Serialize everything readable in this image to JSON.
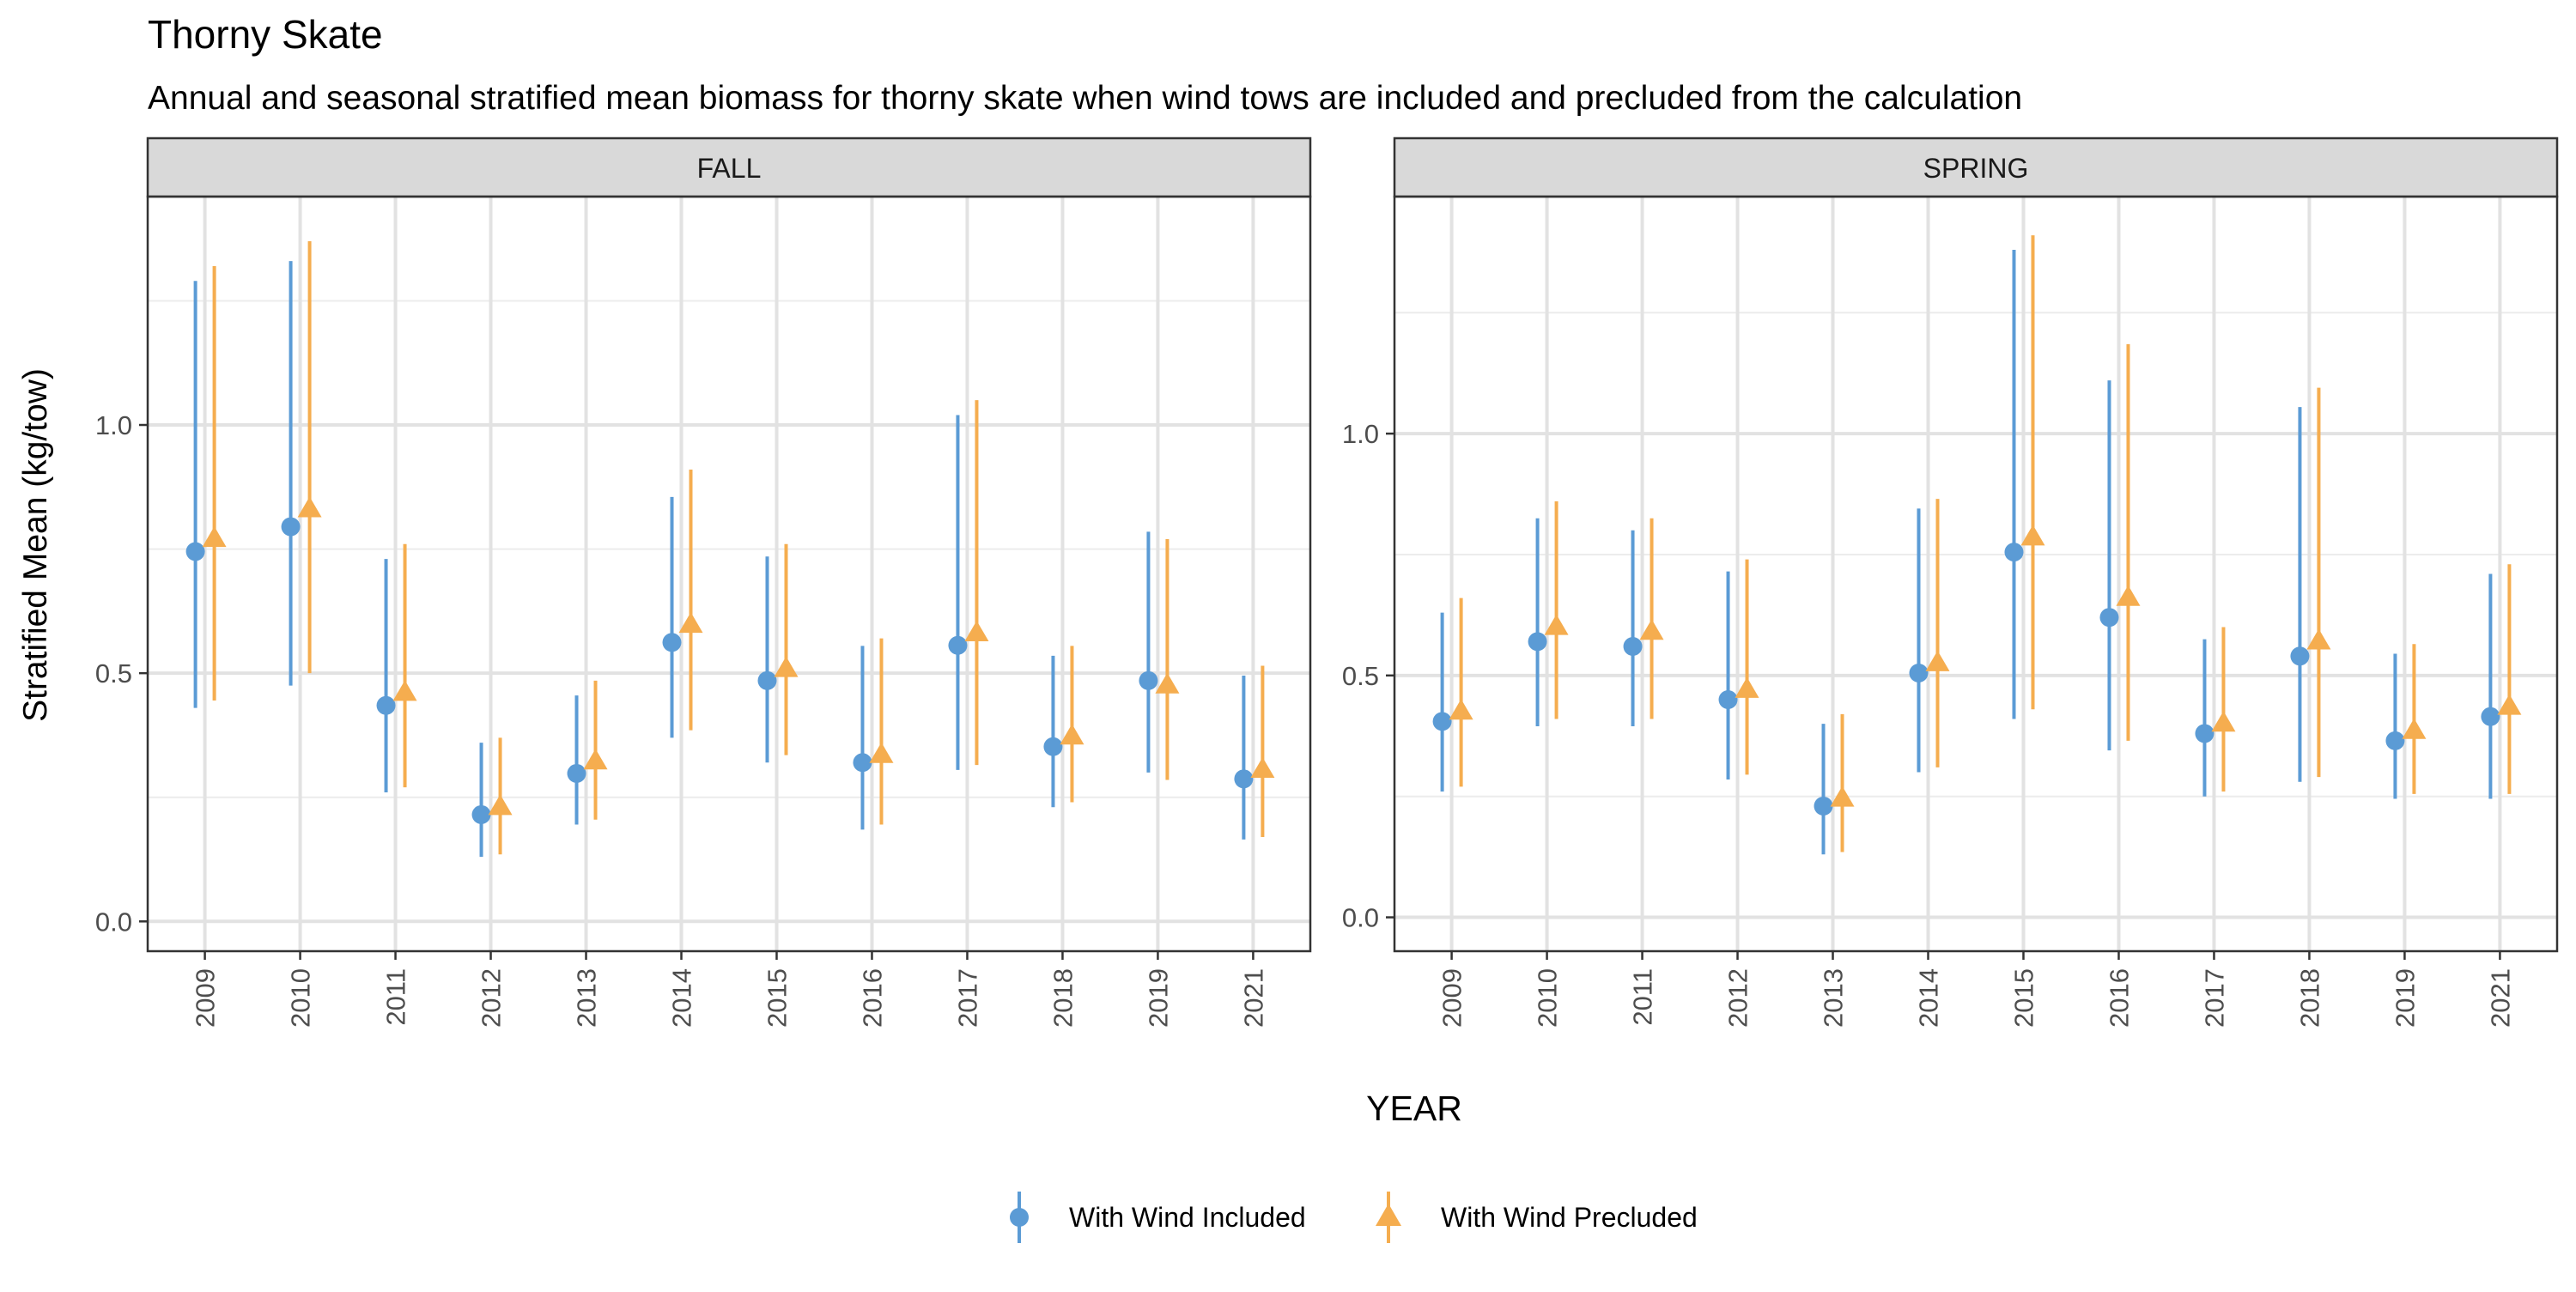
{
  "chart_data": {
    "type": "scatter",
    "title": "Thorny Skate",
    "subtitle": "Annual and seasonal stratified mean biomass for thorny skate when wind tows are included and precluded from the calculation",
    "xlabel": "YEAR",
    "ylabel": "Stratified Mean (kg/tow)",
    "grid": true,
    "legend_position": "bottom",
    "categories": [
      "2009",
      "2010",
      "2011",
      "2012",
      "2013",
      "2014",
      "2015",
      "2016",
      "2017",
      "2018",
      "2019",
      "2021"
    ],
    "series_info": [
      {
        "name": "With Wind Included",
        "color": "#5b9bd5",
        "marker": "circle"
      },
      {
        "name": "With Wind Precluded",
        "color": "#f5ad4f",
        "marker": "triangle"
      }
    ],
    "panels": [
      {
        "label": "FALL",
        "ylim": [
          -0.06,
          1.46
        ],
        "yticks": [
          0.0,
          0.5,
          1.0
        ],
        "ytick_labels": [
          "0.0",
          "0.5",
          "1.0"
        ],
        "series": [
          {
            "name": "With Wind Included",
            "values": [
              0.745,
              0.795,
              0.435,
              0.215,
              0.298,
              0.562,
              0.485,
              0.32,
              0.556,
              0.352,
              0.485,
              0.287
            ],
            "lower": [
              0.43,
              0.475,
              0.26,
              0.13,
              0.195,
              0.37,
              0.32,
              0.185,
              0.305,
              0.23,
              0.3,
              0.165
            ],
            "upper": [
              1.29,
              1.33,
              0.73,
              0.36,
              0.455,
              0.855,
              0.735,
              0.555,
              1.02,
              0.535,
              0.785,
              0.495
            ]
          },
          {
            "name": "With Wind Precluded",
            "values": [
              0.77,
              0.83,
              0.46,
              0.23,
              0.322,
              0.597,
              0.508,
              0.335,
              0.58,
              0.372,
              0.475,
              0.305
            ],
            "lower": [
              0.445,
              0.5,
              0.27,
              0.135,
              0.205,
              0.385,
              0.335,
              0.195,
              0.315,
              0.24,
              0.285,
              0.17
            ],
            "upper": [
              1.32,
              1.37,
              0.76,
              0.37,
              0.485,
              0.91,
              0.76,
              0.57,
              1.05,
              0.555,
              0.77,
              0.515
            ]
          }
        ]
      },
      {
        "label": "SPRING",
        "ylim": [
          -0.07,
          1.49
        ],
        "yticks": [
          0.0,
          0.5,
          1.0
        ],
        "ytick_labels": [
          "0.0",
          "0.5",
          "1.0"
        ],
        "series": [
          {
            "name": "With Wind Included",
            "values": [
              0.405,
              0.57,
              0.56,
              0.45,
              0.23,
              0.505,
              0.755,
              0.62,
              0.38,
              0.54,
              0.365,
              0.415
            ],
            "lower": [
              0.26,
              0.395,
              0.395,
              0.285,
              0.13,
              0.3,
              0.41,
              0.345,
              0.25,
              0.28,
              0.245,
              0.245
            ],
            "upper": [
              0.63,
              0.825,
              0.8,
              0.715,
              0.4,
              0.845,
              1.38,
              1.11,
              0.575,
              1.055,
              0.545,
              0.71
            ]
          },
          {
            "name": "With Wind Precluded",
            "values": [
              0.425,
              0.6,
              0.59,
              0.47,
              0.245,
              0.525,
              0.785,
              0.66,
              0.4,
              0.57,
              0.385,
              0.435
            ],
            "lower": [
              0.27,
              0.41,
              0.41,
              0.295,
              0.135,
              0.31,
              0.43,
              0.365,
              0.26,
              0.29,
              0.255,
              0.255
            ],
            "upper": [
              0.66,
              0.86,
              0.825,
              0.74,
              0.42,
              0.865,
              1.41,
              1.185,
              0.6,
              1.095,
              0.565,
              0.73
            ]
          }
        ]
      }
    ]
  }
}
